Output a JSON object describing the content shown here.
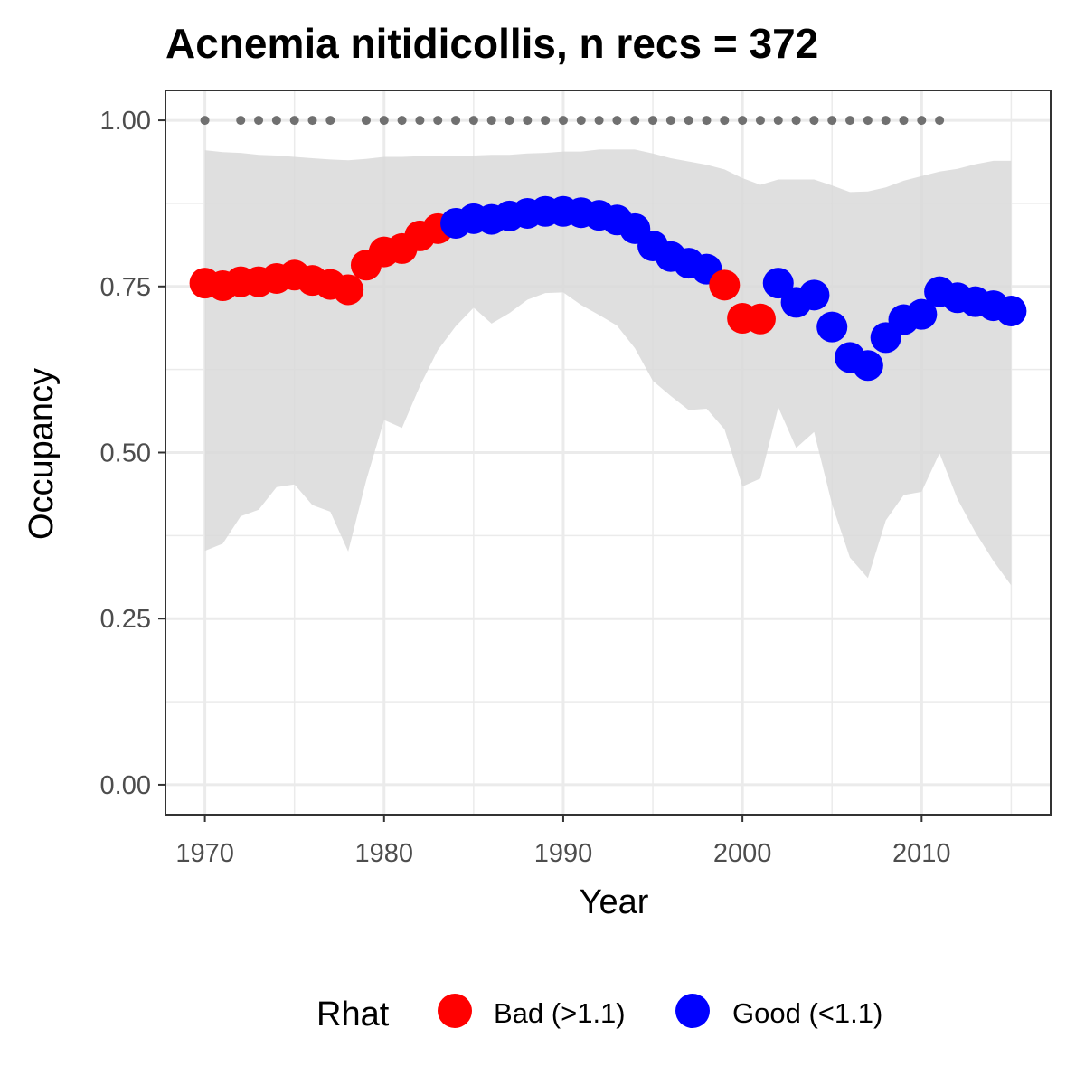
{
  "chart_data": {
    "type": "scatter",
    "title": "Acnemia nitidicollis, n recs = 372",
    "xlabel": "Year",
    "ylabel": "Occupancy",
    "xlim": [
      1967.8,
      2017.2
    ],
    "ylim": [
      -0.045,
      1.045
    ],
    "x_ticks": [
      1970,
      1980,
      1990,
      2000,
      2010
    ],
    "x_tick_labels": [
      "1970",
      "1980",
      "1990",
      "2000",
      "2010"
    ],
    "y_ticks": [
      0,
      0.25,
      0.5,
      0.75,
      1.0
    ],
    "y_tick_labels": [
      "0.00",
      "0.25",
      "0.50",
      "0.75",
      "1.00"
    ],
    "x_minor_ticks": [
      1975,
      1985,
      1995,
      2005,
      2015
    ],
    "y_minor_ticks": [
      0.125,
      0.375,
      0.625,
      0.875
    ],
    "grid": true,
    "legend": {
      "title": "Rhat",
      "position": "bottom",
      "items": [
        {
          "label": "Bad (>1.1)",
          "color": "#ff0000"
        },
        {
          "label": "Good (<1.1)",
          "color": "#0000ff"
        }
      ]
    },
    "colors": {
      "Bad (>1.1)": "#ff0000",
      "Good (<1.1)": "#0000ff",
      "ribbon": "#d9d9d9",
      "records": "#707070"
    },
    "series": [
      {
        "name": "Rhat",
        "x": [
          1970,
          1971,
          1972,
          1973,
          1974,
          1975,
          1976,
          1977,
          1978,
          1979,
          1980,
          1981,
          1982,
          1983,
          1984,
          1985,
          1986,
          1987,
          1988,
          1989,
          1990,
          1991,
          1992,
          1993,
          1994,
          1995,
          1996,
          1997,
          1998,
          1999,
          2000,
          2001,
          2002,
          2003,
          2004,
          2005,
          2006,
          2007,
          2008,
          2009,
          2010,
          2011,
          2012,
          2013,
          2014,
          2015
        ],
        "y": [
          0.755,
          0.751,
          0.757,
          0.757,
          0.762,
          0.767,
          0.759,
          0.753,
          0.745,
          0.782,
          0.802,
          0.807,
          0.826,
          0.837,
          0.845,
          0.852,
          0.851,
          0.856,
          0.86,
          0.863,
          0.863,
          0.861,
          0.857,
          0.85,
          0.837,
          0.811,
          0.795,
          0.785,
          0.776,
          0.752,
          0.702,
          0.701,
          0.755,
          0.726,
          0.737,
          0.689,
          0.643,
          0.631,
          0.673,
          0.7,
          0.708,
          0.742,
          0.733,
          0.727,
          0.721,
          0.713
        ],
        "rhat": [
          "Bad (>1.1)",
          "Bad (>1.1)",
          "Bad (>1.1)",
          "Bad (>1.1)",
          "Bad (>1.1)",
          "Bad (>1.1)",
          "Bad (>1.1)",
          "Bad (>1.1)",
          "Bad (>1.1)",
          "Bad (>1.1)",
          "Bad (>1.1)",
          "Bad (>1.1)",
          "Bad (>1.1)",
          "Bad (>1.1)",
          "Good (<1.1)",
          "Good (<1.1)",
          "Good (<1.1)",
          "Good (<1.1)",
          "Good (<1.1)",
          "Good (<1.1)",
          "Good (<1.1)",
          "Good (<1.1)",
          "Good (<1.1)",
          "Good (<1.1)",
          "Good (<1.1)",
          "Good (<1.1)",
          "Good (<1.1)",
          "Good (<1.1)",
          "Good (<1.1)",
          "Bad (>1.1)",
          "Bad (>1.1)",
          "Bad (>1.1)",
          "Good (<1.1)",
          "Good (<1.1)",
          "Good (<1.1)",
          "Good (<1.1)",
          "Good (<1.1)",
          "Good (<1.1)",
          "Good (<1.1)",
          "Good (<1.1)",
          "Good (<1.1)",
          "Good (<1.1)",
          "Good (<1.1)",
          "Good (<1.1)",
          "Good (<1.1)",
          "Good (<1.1)"
        ]
      }
    ],
    "ribbon": {
      "x": [
        1970,
        1971,
        1972,
        1973,
        1974,
        1975,
        1976,
        1977,
        1978,
        1979,
        1980,
        1981,
        1982,
        1983,
        1984,
        1985,
        1986,
        1987,
        1988,
        1989,
        1990,
        1991,
        1992,
        1993,
        1994,
        1995,
        1996,
        1997,
        1998,
        1999,
        2000,
        2001,
        2002,
        2003,
        2004,
        2005,
        2006,
        2007,
        2008,
        2009,
        2010,
        2011,
        2012,
        2013,
        2014,
        2015
      ],
      "upper": [
        0.955,
        0.952,
        0.951,
        0.948,
        0.947,
        0.945,
        0.943,
        0.941,
        0.94,
        0.942,
        0.945,
        0.945,
        0.946,
        0.946,
        0.946,
        0.947,
        0.948,
        0.948,
        0.95,
        0.951,
        0.953,
        0.953,
        0.956,
        0.956,
        0.956,
        0.95,
        0.943,
        0.938,
        0.933,
        0.926,
        0.913,
        0.903,
        0.911,
        0.911,
        0.911,
        0.902,
        0.892,
        0.893,
        0.899,
        0.909,
        0.916,
        0.923,
        0.927,
        0.934,
        0.939,
        0.939
      ],
      "lower": [
        0.352,
        0.363,
        0.404,
        0.414,
        0.448,
        0.452,
        0.421,
        0.411,
        0.351,
        0.458,
        0.549,
        0.537,
        0.6,
        0.654,
        0.69,
        0.718,
        0.694,
        0.71,
        0.73,
        0.74,
        0.741,
        0.722,
        0.707,
        0.691,
        0.657,
        0.608,
        0.585,
        0.564,
        0.566,
        0.535,
        0.449,
        0.461,
        0.568,
        0.507,
        0.531,
        0.422,
        0.342,
        0.311,
        0.398,
        0.436,
        0.441,
        0.499,
        0.43,
        0.38,
        0.337,
        0.3
      ]
    },
    "record_years": [
      1970,
      1972,
      1973,
      1974,
      1975,
      1976,
      1977,
      1979,
      1980,
      1981,
      1982,
      1983,
      1984,
      1985,
      1986,
      1987,
      1988,
      1989,
      1990,
      1991,
      1992,
      1993,
      1994,
      1995,
      1996,
      1997,
      1998,
      1999,
      2000,
      2001,
      2002,
      2003,
      2004,
      2005,
      2006,
      2007,
      2008,
      2009,
      2010,
      2011
    ],
    "record_marker_y": 1.0
  }
}
